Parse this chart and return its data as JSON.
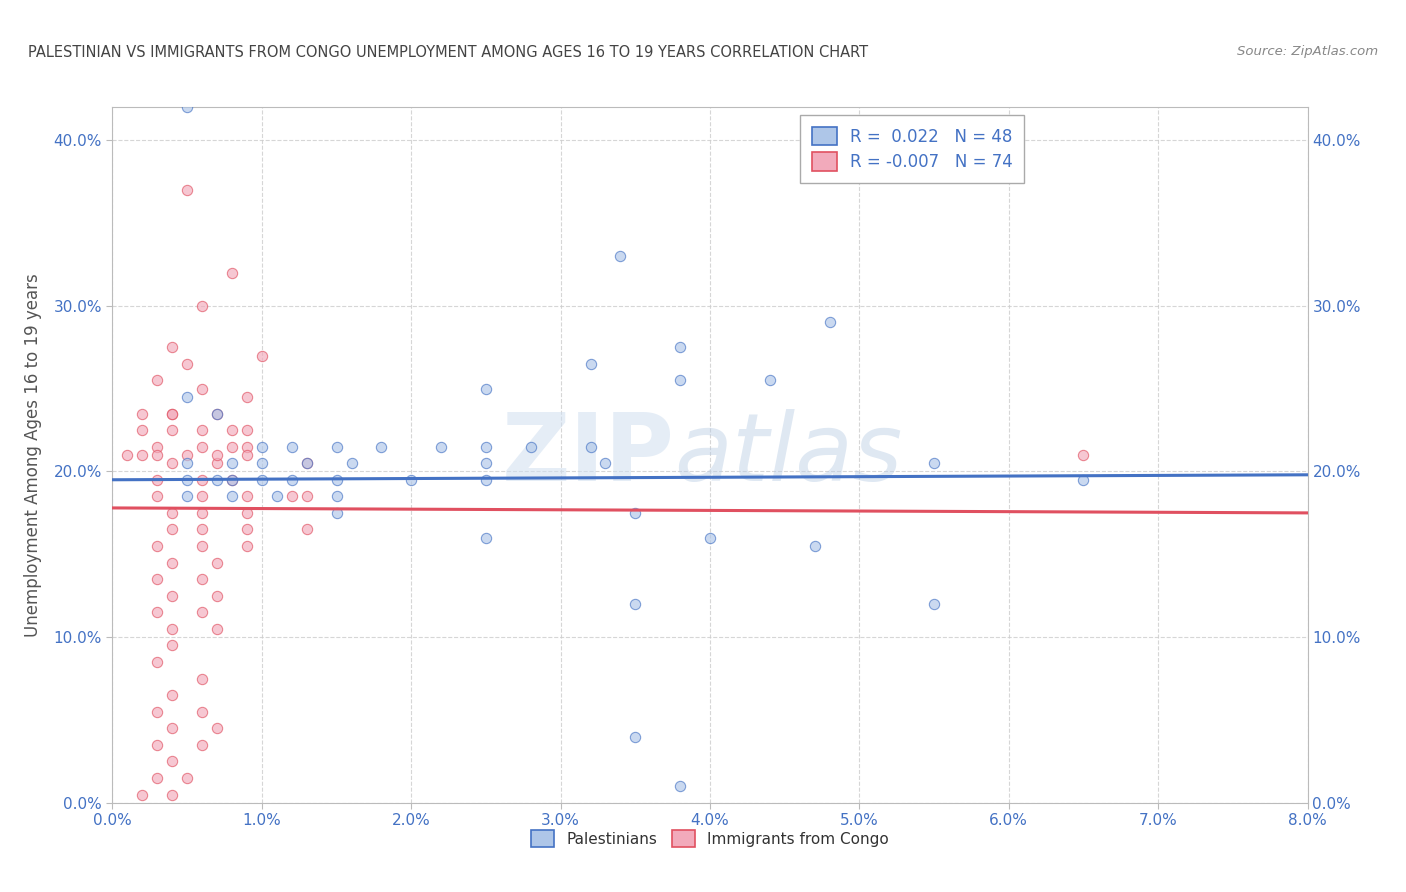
{
  "title": "PALESTINIAN VS IMMIGRANTS FROM CONGO UNEMPLOYMENT AMONG AGES 16 TO 19 YEARS CORRELATION CHART",
  "source": "Source: ZipAtlas.com",
  "xlim": [
    0.0,
    0.08
  ],
  "ylim": [
    0.0,
    0.42
  ],
  "ylabel": "Unemployment Among Ages 16 to 19 years",
  "watermark": "ZIPatlas",
  "blue_R": 0.022,
  "blue_N": 48,
  "pink_R": -0.007,
  "pink_N": 74,
  "blue_color": "#aec6e8",
  "pink_color": "#f2aabb",
  "blue_line_color": "#4472c4",
  "pink_line_color": "#e05060",
  "legend_label_blue": "Palestinians",
  "legend_label_pink": "Immigrants from Congo",
  "blue_scatter": [
    [
      0.005,
      0.42
    ],
    [
      0.034,
      0.33
    ],
    [
      0.038,
      0.275
    ],
    [
      0.048,
      0.29
    ],
    [
      0.032,
      0.265
    ],
    [
      0.038,
      0.255
    ],
    [
      0.025,
      0.25
    ],
    [
      0.044,
      0.255
    ],
    [
      0.005,
      0.245
    ],
    [
      0.007,
      0.235
    ],
    [
      0.01,
      0.215
    ],
    [
      0.012,
      0.215
    ],
    [
      0.015,
      0.215
    ],
    [
      0.018,
      0.215
    ],
    [
      0.022,
      0.215
    ],
    [
      0.025,
      0.215
    ],
    [
      0.028,
      0.215
    ],
    [
      0.032,
      0.215
    ],
    [
      0.005,
      0.205
    ],
    [
      0.008,
      0.205
    ],
    [
      0.01,
      0.205
    ],
    [
      0.013,
      0.205
    ],
    [
      0.016,
      0.205
    ],
    [
      0.025,
      0.205
    ],
    [
      0.033,
      0.205
    ],
    [
      0.055,
      0.205
    ],
    [
      0.005,
      0.195
    ],
    [
      0.007,
      0.195
    ],
    [
      0.008,
      0.195
    ],
    [
      0.01,
      0.195
    ],
    [
      0.012,
      0.195
    ],
    [
      0.015,
      0.195
    ],
    [
      0.02,
      0.195
    ],
    [
      0.025,
      0.195
    ],
    [
      0.005,
      0.185
    ],
    [
      0.008,
      0.185
    ],
    [
      0.011,
      0.185
    ],
    [
      0.015,
      0.185
    ],
    [
      0.015,
      0.175
    ],
    [
      0.035,
      0.175
    ],
    [
      0.025,
      0.16
    ],
    [
      0.04,
      0.16
    ],
    [
      0.047,
      0.155
    ],
    [
      0.035,
      0.12
    ],
    [
      0.055,
      0.12
    ],
    [
      0.065,
      0.195
    ],
    [
      0.035,
      0.04
    ],
    [
      0.038,
      0.01
    ]
  ],
  "pink_scatter": [
    [
      0.005,
      0.37
    ],
    [
      0.008,
      0.32
    ],
    [
      0.006,
      0.3
    ],
    [
      0.004,
      0.275
    ],
    [
      0.01,
      0.27
    ],
    [
      0.003,
      0.255
    ],
    [
      0.006,
      0.25
    ],
    [
      0.009,
      0.245
    ],
    [
      0.004,
      0.235
    ],
    [
      0.007,
      0.235
    ],
    [
      0.006,
      0.225
    ],
    [
      0.009,
      0.225
    ],
    [
      0.003,
      0.215
    ],
    [
      0.006,
      0.215
    ],
    [
      0.009,
      0.215
    ],
    [
      0.004,
      0.205
    ],
    [
      0.007,
      0.205
    ],
    [
      0.003,
      0.195
    ],
    [
      0.006,
      0.195
    ],
    [
      0.008,
      0.195
    ],
    [
      0.003,
      0.185
    ],
    [
      0.006,
      0.185
    ],
    [
      0.009,
      0.185
    ],
    [
      0.004,
      0.175
    ],
    [
      0.006,
      0.175
    ],
    [
      0.009,
      0.175
    ],
    [
      0.004,
      0.165
    ],
    [
      0.006,
      0.165
    ],
    [
      0.009,
      0.165
    ],
    [
      0.003,
      0.155
    ],
    [
      0.006,
      0.155
    ],
    [
      0.009,
      0.155
    ],
    [
      0.004,
      0.145
    ],
    [
      0.007,
      0.145
    ],
    [
      0.003,
      0.135
    ],
    [
      0.006,
      0.135
    ],
    [
      0.004,
      0.125
    ],
    [
      0.007,
      0.125
    ],
    [
      0.003,
      0.115
    ],
    [
      0.006,
      0.115
    ],
    [
      0.004,
      0.105
    ],
    [
      0.007,
      0.105
    ],
    [
      0.004,
      0.095
    ],
    [
      0.003,
      0.085
    ],
    [
      0.006,
      0.075
    ],
    [
      0.004,
      0.065
    ],
    [
      0.003,
      0.055
    ],
    [
      0.006,
      0.055
    ],
    [
      0.004,
      0.045
    ],
    [
      0.007,
      0.045
    ],
    [
      0.003,
      0.035
    ],
    [
      0.006,
      0.035
    ],
    [
      0.004,
      0.025
    ],
    [
      0.003,
      0.015
    ],
    [
      0.005,
      0.015
    ],
    [
      0.002,
      0.005
    ],
    [
      0.004,
      0.005
    ],
    [
      0.001,
      0.21
    ],
    [
      0.002,
      0.21
    ],
    [
      0.003,
      0.21
    ],
    [
      0.005,
      0.21
    ],
    [
      0.007,
      0.21
    ],
    [
      0.009,
      0.21
    ],
    [
      0.002,
      0.225
    ],
    [
      0.004,
      0.225
    ],
    [
      0.008,
      0.225
    ],
    [
      0.002,
      0.235
    ],
    [
      0.004,
      0.235
    ],
    [
      0.065,
      0.21
    ],
    [
      0.013,
      0.165
    ],
    [
      0.012,
      0.185
    ],
    [
      0.013,
      0.205
    ],
    [
      0.013,
      0.185
    ],
    [
      0.008,
      0.215
    ],
    [
      0.005,
      0.265
    ]
  ],
  "blue_line_y0": 0.195,
  "blue_line_y1": 0.198,
  "pink_line_y0": 0.178,
  "pink_line_y1": 0.175,
  "background_color": "#ffffff",
  "grid_color": "#cccccc",
  "title_color": "#444444",
  "axis_color": "#4472c4",
  "scatter_size": 55,
  "scatter_alpha": 0.65
}
